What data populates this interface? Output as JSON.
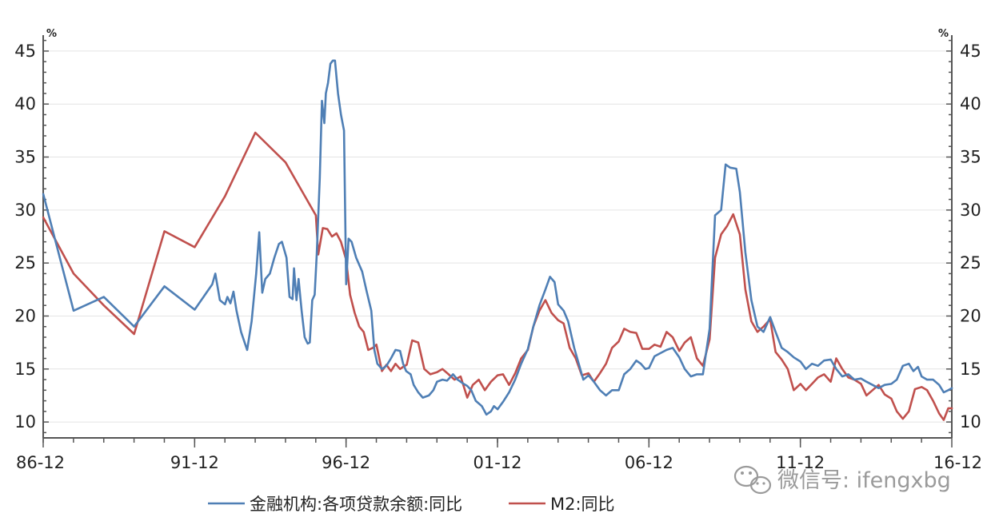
{
  "chart_data": {
    "type": "line",
    "title": "",
    "xlabel": "",
    "ylabel_left": "%",
    "ylabel_right": "%",
    "ylim": [
      8.5,
      46.5
    ],
    "xlim": [
      1986.917,
      2016.917
    ],
    "y_ticks": [
      10,
      15,
      20,
      25,
      30,
      35,
      40,
      45
    ],
    "x_tick_labels": [
      "86-12",
      "91-12",
      "96-12",
      "01-12",
      "06-12",
      "11-12",
      "16-12"
    ],
    "x_tick_values": [
      1986.917,
      1991.917,
      1996.917,
      2001.917,
      2006.917,
      2011.917,
      2016.917
    ],
    "grid": true,
    "legend_position": "bottom",
    "series": [
      {
        "name": "金融机构:各项贷款余额:同比",
        "color": "#4f7fb5",
        "points": [
          [
            1986.92,
            31.5
          ],
          [
            1987.92,
            20.5
          ],
          [
            1988.92,
            21.8
          ],
          [
            1989.92,
            19.0
          ],
          [
            1990.92,
            22.8
          ],
          [
            1991.92,
            20.6
          ],
          [
            1992.5,
            23.0
          ],
          [
            1992.6,
            24.0
          ],
          [
            1992.75,
            21.5
          ],
          [
            1992.92,
            21.1
          ],
          [
            1993.0,
            21.8
          ],
          [
            1993.1,
            21.2
          ],
          [
            1993.2,
            22.3
          ],
          [
            1993.3,
            20.5
          ],
          [
            1993.45,
            18.5
          ],
          [
            1993.65,
            16.8
          ],
          [
            1993.8,
            19.5
          ],
          [
            1993.95,
            24.0
          ],
          [
            1994.05,
            27.9
          ],
          [
            1994.15,
            22.2
          ],
          [
            1994.25,
            23.5
          ],
          [
            1994.4,
            24.0
          ],
          [
            1994.55,
            25.5
          ],
          [
            1994.7,
            26.8
          ],
          [
            1994.8,
            27.0
          ],
          [
            1994.95,
            25.5
          ],
          [
            1995.05,
            21.8
          ],
          [
            1995.15,
            21.6
          ],
          [
            1995.2,
            24.5
          ],
          [
            1995.28,
            21.5
          ],
          [
            1995.35,
            23.5
          ],
          [
            1995.45,
            20.5
          ],
          [
            1995.55,
            18.0
          ],
          [
            1995.65,
            17.4
          ],
          [
            1995.72,
            17.5
          ],
          [
            1995.8,
            21.5
          ],
          [
            1995.88,
            22.0
          ],
          [
            1995.95,
            25.8
          ],
          [
            1996.05,
            33.0
          ],
          [
            1996.12,
            40.3
          ],
          [
            1996.2,
            38.2
          ],
          [
            1996.25,
            41.0
          ],
          [
            1996.32,
            42.0
          ],
          [
            1996.4,
            43.8
          ],
          [
            1996.48,
            44.1
          ],
          [
            1996.55,
            44.1
          ],
          [
            1996.65,
            41.0
          ],
          [
            1996.75,
            39.0
          ],
          [
            1996.85,
            37.5
          ],
          [
            1996.92,
            23.0
          ],
          [
            1997.0,
            27.3
          ],
          [
            1997.1,
            27.0
          ],
          [
            1997.25,
            25.5
          ],
          [
            1997.45,
            24.2
          ],
          [
            1997.6,
            22.3
          ],
          [
            1997.75,
            20.5
          ],
          [
            1997.85,
            16.8
          ],
          [
            1997.95,
            15.5
          ],
          [
            1998.1,
            15.0
          ],
          [
            1998.25,
            15.3
          ],
          [
            1998.4,
            16.0
          ],
          [
            1998.55,
            16.8
          ],
          [
            1998.7,
            16.7
          ],
          [
            1998.8,
            15.5
          ],
          [
            1998.9,
            14.8
          ],
          [
            1999.05,
            14.5
          ],
          [
            1999.15,
            13.5
          ],
          [
            1999.3,
            12.8
          ],
          [
            1999.45,
            12.3
          ],
          [
            1999.65,
            12.5
          ],
          [
            1999.8,
            13.0
          ],
          [
            1999.92,
            13.8
          ],
          [
            2000.1,
            14.0
          ],
          [
            2000.25,
            13.9
          ],
          [
            2000.45,
            14.5
          ],
          [
            2000.6,
            14.0
          ],
          [
            2000.8,
            13.6
          ],
          [
            2000.92,
            13.4
          ],
          [
            2001.05,
            13.0
          ],
          [
            2001.2,
            12.0
          ],
          [
            2001.4,
            11.5
          ],
          [
            2001.55,
            10.7
          ],
          [
            2001.7,
            11.0
          ],
          [
            2001.8,
            11.5
          ],
          [
            2001.92,
            11.2
          ],
          [
            2002.1,
            11.9
          ],
          [
            2002.3,
            12.8
          ],
          [
            2002.5,
            14.0
          ],
          [
            2002.7,
            15.5
          ],
          [
            2002.92,
            16.9
          ],
          [
            2003.1,
            19.0
          ],
          [
            2003.3,
            21.0
          ],
          [
            2003.5,
            22.5
          ],
          [
            2003.65,
            23.7
          ],
          [
            2003.8,
            23.2
          ],
          [
            2003.92,
            21.1
          ],
          [
            2004.1,
            20.5
          ],
          [
            2004.25,
            19.5
          ],
          [
            2004.45,
            17.0
          ],
          [
            2004.6,
            15.5
          ],
          [
            2004.75,
            14.0
          ],
          [
            2004.92,
            14.4
          ],
          [
            2005.1,
            13.8
          ],
          [
            2005.3,
            13.0
          ],
          [
            2005.5,
            12.5
          ],
          [
            2005.7,
            13.0
          ],
          [
            2005.92,
            13.0
          ],
          [
            2006.1,
            14.5
          ],
          [
            2006.3,
            15.0
          ],
          [
            2006.5,
            15.8
          ],
          [
            2006.65,
            15.5
          ],
          [
            2006.8,
            15.0
          ],
          [
            2006.92,
            15.1
          ],
          [
            2007.1,
            16.2
          ],
          [
            2007.3,
            16.5
          ],
          [
            2007.5,
            16.8
          ],
          [
            2007.7,
            17.0
          ],
          [
            2007.92,
            16.1
          ],
          [
            2008.1,
            15.0
          ],
          [
            2008.3,
            14.3
          ],
          [
            2008.5,
            14.5
          ],
          [
            2008.7,
            14.5
          ],
          [
            2008.92,
            18.8
          ],
          [
            2009.1,
            29.5
          ],
          [
            2009.3,
            30.0
          ],
          [
            2009.45,
            34.3
          ],
          [
            2009.6,
            34.0
          ],
          [
            2009.8,
            33.9
          ],
          [
            2009.92,
            31.7
          ],
          [
            2010.1,
            26.0
          ],
          [
            2010.3,
            21.5
          ],
          [
            2010.5,
            19.0
          ],
          [
            2010.7,
            18.5
          ],
          [
            2010.92,
            19.9
          ],
          [
            2011.1,
            18.5
          ],
          [
            2011.3,
            17.0
          ],
          [
            2011.5,
            16.6
          ],
          [
            2011.7,
            16.1
          ],
          [
            2011.92,
            15.7
          ],
          [
            2012.1,
            15.0
          ],
          [
            2012.3,
            15.5
          ],
          [
            2012.5,
            15.3
          ],
          [
            2012.7,
            15.8
          ],
          [
            2012.92,
            15.9
          ],
          [
            2013.1,
            15.0
          ],
          [
            2013.3,
            14.3
          ],
          [
            2013.5,
            14.5
          ],
          [
            2013.7,
            14.0
          ],
          [
            2013.92,
            14.1
          ],
          [
            2014.1,
            13.8
          ],
          [
            2014.3,
            13.5
          ],
          [
            2014.5,
            13.2
          ],
          [
            2014.7,
            13.5
          ],
          [
            2014.92,
            13.6
          ],
          [
            2015.1,
            14.0
          ],
          [
            2015.3,
            15.3
          ],
          [
            2015.5,
            15.5
          ],
          [
            2015.65,
            14.8
          ],
          [
            2015.8,
            15.2
          ],
          [
            2015.92,
            14.3
          ],
          [
            2016.1,
            14.0
          ],
          [
            2016.3,
            14.0
          ],
          [
            2016.5,
            13.5
          ],
          [
            2016.65,
            12.8
          ],
          [
            2016.8,
            13.0
          ],
          [
            2016.92,
            13.2
          ]
        ]
      },
      {
        "name": "M2:同比",
        "color": "#c0504d",
        "points": [
          [
            1986.92,
            29.3
          ],
          [
            1987.92,
            24.0
          ],
          [
            1988.92,
            21.0
          ],
          [
            1989.92,
            18.3
          ],
          [
            1990.92,
            28.0
          ],
          [
            1991.92,
            26.5
          ],
          [
            1992.92,
            31.3
          ],
          [
            1993.92,
            37.3
          ],
          [
            1994.92,
            34.5
          ],
          [
            1995.92,
            29.5
          ],
          [
            1996.0,
            25.8
          ],
          [
            1996.15,
            28.3
          ],
          [
            1996.3,
            28.2
          ],
          [
            1996.45,
            27.5
          ],
          [
            1996.6,
            27.8
          ],
          [
            1996.75,
            27.0
          ],
          [
            1996.92,
            25.3
          ],
          [
            1997.05,
            22.0
          ],
          [
            1997.2,
            20.3
          ],
          [
            1997.35,
            19.0
          ],
          [
            1997.5,
            18.5
          ],
          [
            1997.65,
            16.8
          ],
          [
            1997.8,
            17.0
          ],
          [
            1997.92,
            17.3
          ],
          [
            1998.1,
            14.8
          ],
          [
            1998.25,
            15.4
          ],
          [
            1998.4,
            14.8
          ],
          [
            1998.55,
            15.5
          ],
          [
            1998.7,
            15.0
          ],
          [
            1998.8,
            15.2
          ],
          [
            1998.92,
            15.4
          ],
          [
            1999.1,
            17.7
          ],
          [
            1999.3,
            17.5
          ],
          [
            1999.5,
            15.0
          ],
          [
            1999.7,
            14.5
          ],
          [
            1999.92,
            14.7
          ],
          [
            2000.1,
            15.0
          ],
          [
            2000.3,
            14.5
          ],
          [
            2000.5,
            14.0
          ],
          [
            2000.7,
            14.3
          ],
          [
            2000.92,
            12.3
          ],
          [
            2001.1,
            13.5
          ],
          [
            2001.3,
            14.0
          ],
          [
            2001.5,
            13.0
          ],
          [
            2001.7,
            13.8
          ],
          [
            2001.92,
            14.4
          ],
          [
            2002.1,
            14.5
          ],
          [
            2002.3,
            13.5
          ],
          [
            2002.5,
            14.6
          ],
          [
            2002.7,
            16.0
          ],
          [
            2002.92,
            16.8
          ],
          [
            2003.1,
            19.0
          ],
          [
            2003.3,
            20.5
          ],
          [
            2003.5,
            21.5
          ],
          [
            2003.7,
            20.3
          ],
          [
            2003.92,
            19.6
          ],
          [
            2004.1,
            19.3
          ],
          [
            2004.3,
            17.0
          ],
          [
            2004.5,
            16.0
          ],
          [
            2004.7,
            14.4
          ],
          [
            2004.92,
            14.6
          ],
          [
            2005.1,
            13.8
          ],
          [
            2005.3,
            14.6
          ],
          [
            2005.5,
            15.5
          ],
          [
            2005.7,
            17.0
          ],
          [
            2005.92,
            17.6
          ],
          [
            2006.1,
            18.8
          ],
          [
            2006.3,
            18.5
          ],
          [
            2006.5,
            18.4
          ],
          [
            2006.7,
            16.9
          ],
          [
            2006.92,
            16.9
          ],
          [
            2007.1,
            17.3
          ],
          [
            2007.3,
            17.1
          ],
          [
            2007.5,
            18.5
          ],
          [
            2007.7,
            18.0
          ],
          [
            2007.92,
            16.7
          ],
          [
            2008.1,
            17.5
          ],
          [
            2008.3,
            18.0
          ],
          [
            2008.5,
            16.0
          ],
          [
            2008.7,
            15.3
          ],
          [
            2008.92,
            17.8
          ],
          [
            2009.1,
            25.5
          ],
          [
            2009.3,
            27.7
          ],
          [
            2009.5,
            28.5
          ],
          [
            2009.7,
            29.6
          ],
          [
            2009.92,
            27.7
          ],
          [
            2010.1,
            22.5
          ],
          [
            2010.3,
            19.5
          ],
          [
            2010.5,
            18.5
          ],
          [
            2010.7,
            19.0
          ],
          [
            2010.92,
            19.7
          ],
          [
            2011.1,
            16.6
          ],
          [
            2011.3,
            15.9
          ],
          [
            2011.5,
            15.0
          ],
          [
            2011.7,
            13.0
          ],
          [
            2011.92,
            13.6
          ],
          [
            2012.1,
            13.0
          ],
          [
            2012.3,
            13.6
          ],
          [
            2012.5,
            14.2
          ],
          [
            2012.7,
            14.5
          ],
          [
            2012.92,
            13.8
          ],
          [
            2013.1,
            16.0
          ],
          [
            2013.3,
            15.0
          ],
          [
            2013.5,
            14.2
          ],
          [
            2013.7,
            14.0
          ],
          [
            2013.92,
            13.6
          ],
          [
            2014.1,
            12.5
          ],
          [
            2014.3,
            13.0
          ],
          [
            2014.5,
            13.5
          ],
          [
            2014.7,
            12.6
          ],
          [
            2014.92,
            12.2
          ],
          [
            2015.1,
            11.0
          ],
          [
            2015.3,
            10.3
          ],
          [
            2015.5,
            11.0
          ],
          [
            2015.7,
            13.1
          ],
          [
            2015.92,
            13.3
          ],
          [
            2016.1,
            13.0
          ],
          [
            2016.3,
            12.0
          ],
          [
            2016.5,
            10.8
          ],
          [
            2016.65,
            10.2
          ],
          [
            2016.8,
            11.3
          ],
          [
            2016.92,
            11.3
          ]
        ]
      }
    ]
  },
  "watermark": {
    "text": "微信号: ifengxbg",
    "icon": "wechat-icon"
  }
}
